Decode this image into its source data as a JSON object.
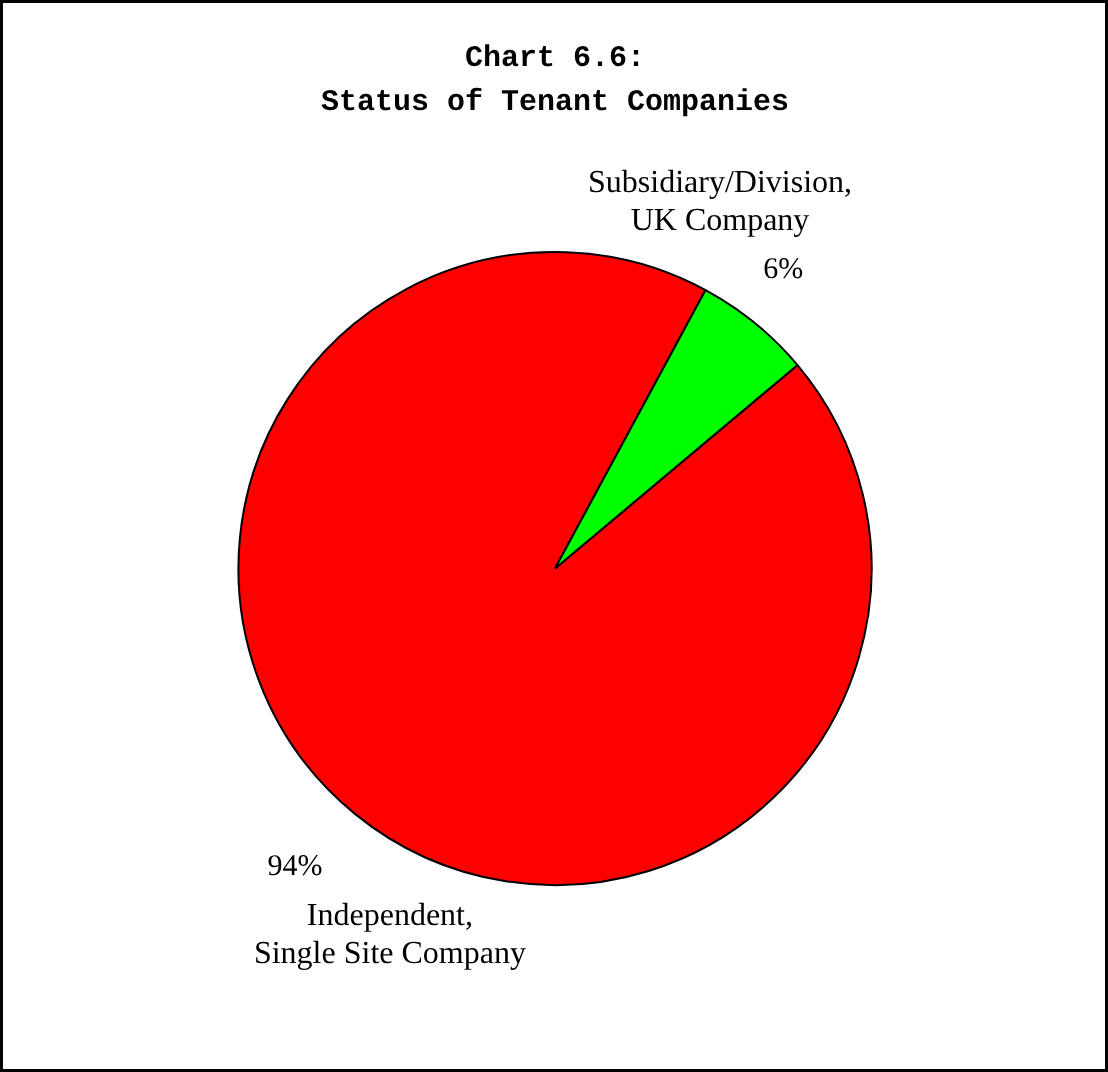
{
  "chart_data": {
    "type": "pie",
    "title": "Chart 6.6: Status of Tenant Companies",
    "categories": [
      "Independent, Single Site Company",
      "Subsidiary/Division, UK Company"
    ],
    "values": [
      94,
      6
    ],
    "colors": [
      "#ff0000",
      "#00ff00"
    ],
    "value_labels": [
      "94%",
      "6%"
    ]
  }
}
